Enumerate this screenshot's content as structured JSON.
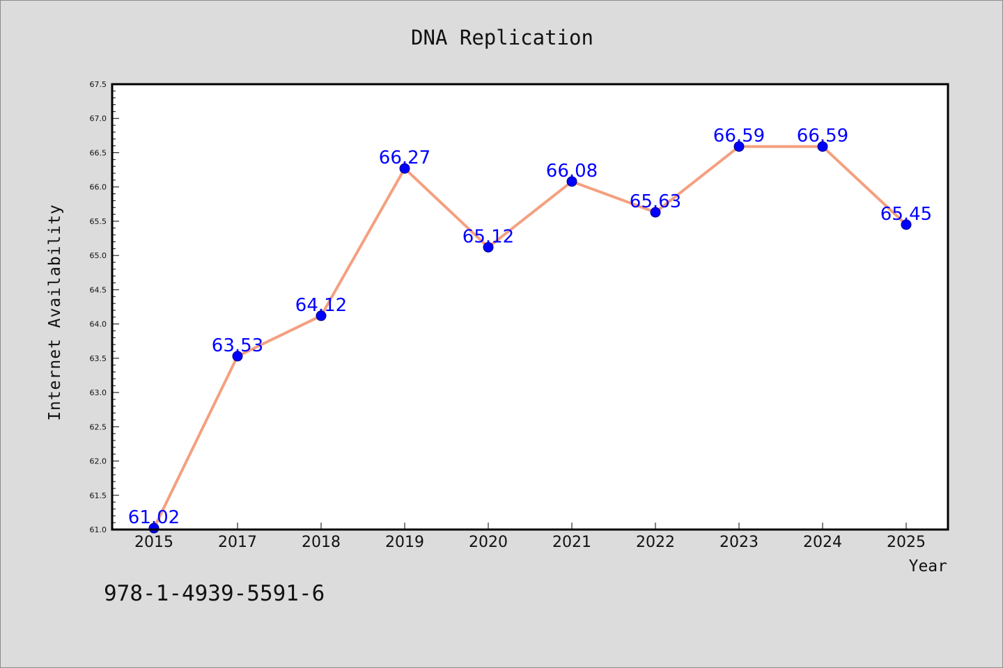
{
  "chart_data": {
    "type": "line",
    "title": "DNA Replication",
    "xlabel": "Year",
    "ylabel": "Internet Availability",
    "categories": [
      "2015",
      "2017",
      "2018",
      "2019",
      "2020",
      "2021",
      "2022",
      "2023",
      "2024",
      "2025"
    ],
    "series": [
      {
        "values": [
          61.02,
          63.53,
          64.12,
          66.27,
          65.12,
          66.08,
          65.63,
          66.59,
          66.59,
          65.45
        ]
      }
    ],
    "data_labels": [
      "61.02",
      "63.53",
      "64.12",
      "66.27",
      "65.12",
      "66.08",
      "65.63",
      "66.59",
      "66.59",
      "65.45"
    ],
    "ylim": [
      61.0,
      67.5
    ],
    "yticks": [
      "61.0",
      "61.5",
      "62.0",
      "62.5",
      "63.0",
      "63.5",
      "64.0",
      "64.5",
      "65.0",
      "65.5",
      "66.0",
      "66.5",
      "67.0",
      "67.5"
    ],
    "ytick_step": 0.5,
    "yminor_step": 0.1,
    "grid": false,
    "colors": {
      "line": "#f4a07f",
      "marker": "#0000ff",
      "marker_edge": "#000080",
      "label": "#0000ff",
      "axes": "#000000",
      "plot_bg": "#ffffff",
      "page_bg": "#dcdcdc"
    }
  },
  "footnote": "978-1-4939-5591-6"
}
